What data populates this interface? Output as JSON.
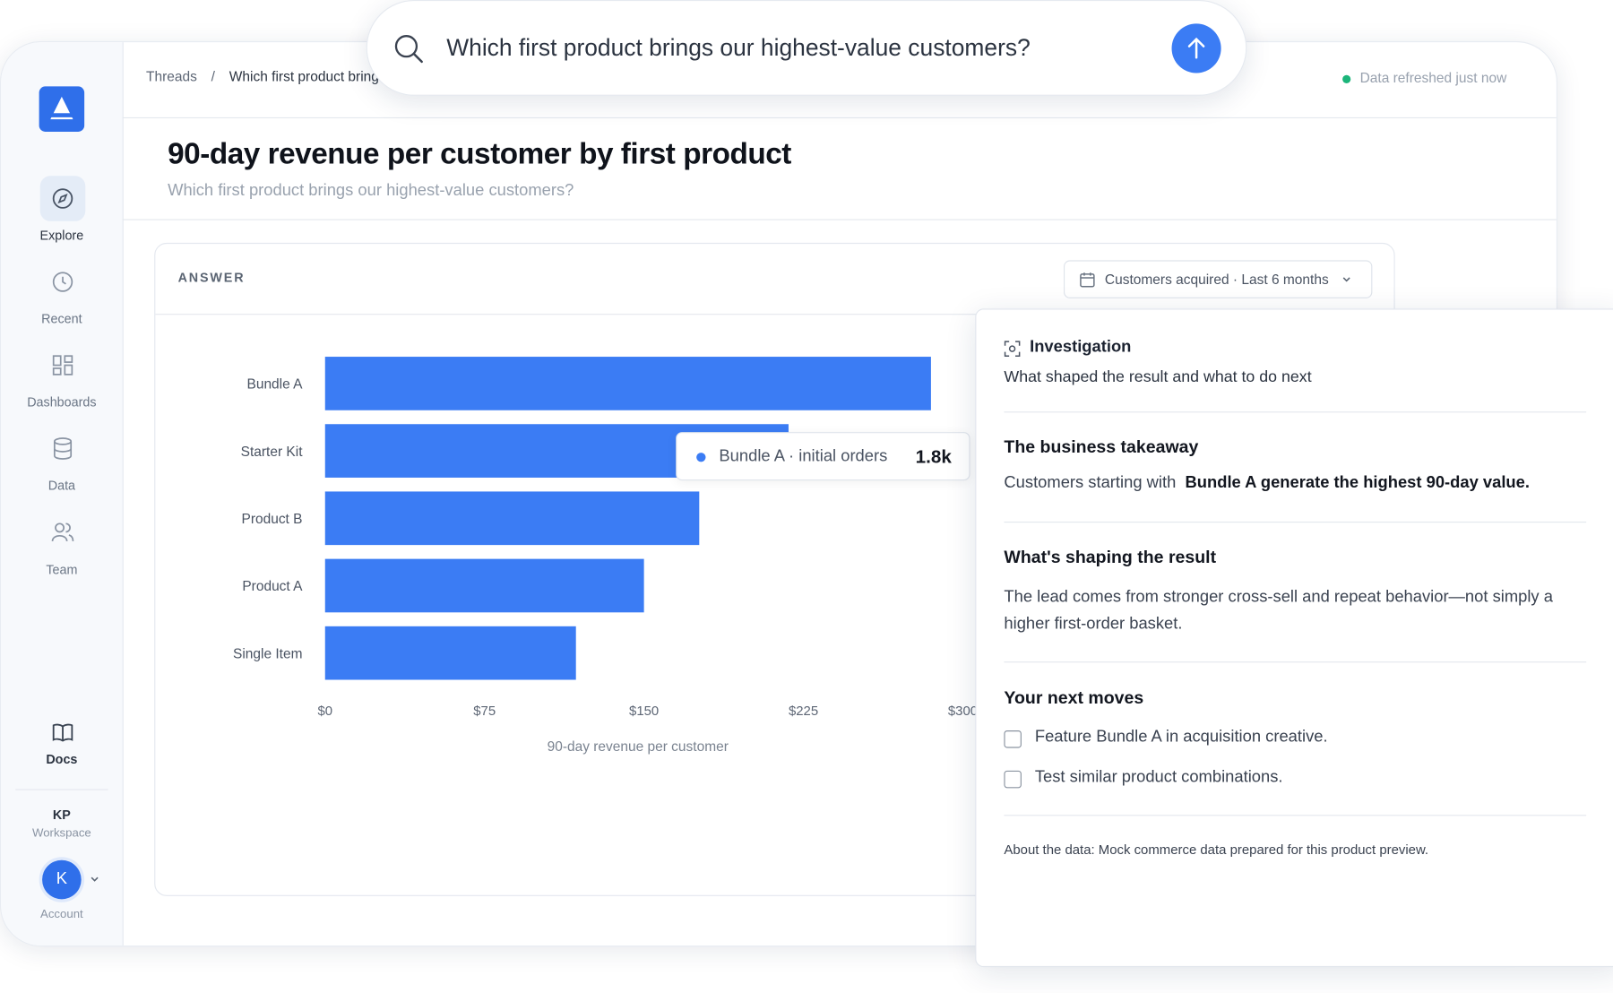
{
  "search": {
    "query": "Which first product brings our highest-value customers?"
  },
  "sidebar": {
    "nav": [
      "Explore",
      "Recent",
      "Dashboards",
      "Data",
      "Team"
    ],
    "docs": "Docs",
    "workspace_initials": "KP",
    "workspace": "Workspace",
    "avatar": "K",
    "account": "Account"
  },
  "breadcrumb": [
    "Threads",
    "/",
    "Which first product brings our highest-value customers?"
  ],
  "status": "Data refreshed just now",
  "header": {
    "title": "90-day revenue per customer by first product",
    "subtitle": "Which first product brings our highest-value customers?"
  },
  "answer": {
    "label": "ANSWER",
    "filter": "Customers acquired · Last 6 months"
  },
  "chart_data": {
    "type": "bar",
    "orientation": "horizontal",
    "categories": [
      "Bundle A",
      "Starter Kit",
      "Product B",
      "Product A",
      "Single Item"
    ],
    "values": [
      285,
      218,
      176,
      150,
      118
    ],
    "color": "#3b7cf4",
    "xlim": [
      0,
      300
    ],
    "xticks": [
      {
        "value": 0,
        "label": "$0"
      },
      {
        "value": 75,
        "label": "$75"
      },
      {
        "value": 150,
        "label": "$150"
      },
      {
        "value": 225,
        "label": "$225"
      },
      {
        "value": 300,
        "label": "$300"
      }
    ],
    "x_label": "90-day revenue per customer"
  },
  "tooltip": {
    "text": "Bundle A · initial orders",
    "value": "1.8k"
  },
  "panel": {
    "title": "Investigation",
    "subtitle": "What shaped the result and what to do next",
    "takeaway_heading": "The business takeaway",
    "takeaway_text": "Customers starting with",
    "takeaway_bold": "Bundle A generate the highest 90-day value.",
    "shaping_heading": "What's shaping the result",
    "shaping_text": "The lead comes from stronger cross-sell and repeat behavior—not simply a higher first-order basket.",
    "moves_heading": "Your next moves",
    "moves": [
      "Feature Bundle A in acquisition creative.",
      "Test similar product combinations."
    ],
    "about": "About the data: Mock commerce data prepared for this product preview."
  }
}
